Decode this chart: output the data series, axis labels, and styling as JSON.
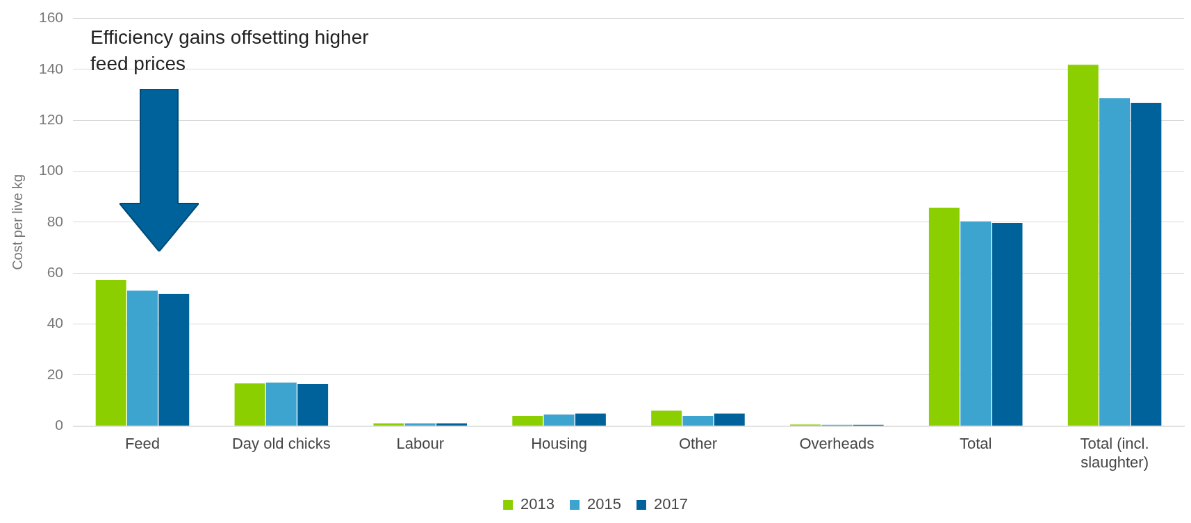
{
  "chart_data": {
    "type": "bar",
    "ylabel": "Cost per live kg",
    "categories": [
      "Feed",
      "Day old chicks",
      "Labour",
      "Housing",
      "Other",
      "Overheads",
      "Total",
      "Total (incl. slaughter)"
    ],
    "series": [
      {
        "name": "2013",
        "color": "#8ccf00",
        "values": [
          57.3,
          16.7,
          1,
          3.9,
          6,
          0.5,
          85.7,
          141.8
        ]
      },
      {
        "name": "2015",
        "color": "#3da3cf",
        "values": [
          53.1,
          17,
          1,
          4.5,
          3.9,
          0.4,
          80.3,
          128.7
        ]
      },
      {
        "name": "2017",
        "color": "#00629b",
        "values": [
          51.9,
          16.4,
          1,
          4.8,
          4.8,
          0.4,
          79.7,
          126.9
        ]
      }
    ],
    "ylim": [
      0,
      160
    ],
    "yticks": [
      0,
      20,
      40,
      60,
      80,
      100,
      120,
      140,
      160
    ],
    "grid": "y",
    "legend": "bottom",
    "annotations": [
      "Efficiency gains offsetting higher feed prices"
    ]
  }
}
